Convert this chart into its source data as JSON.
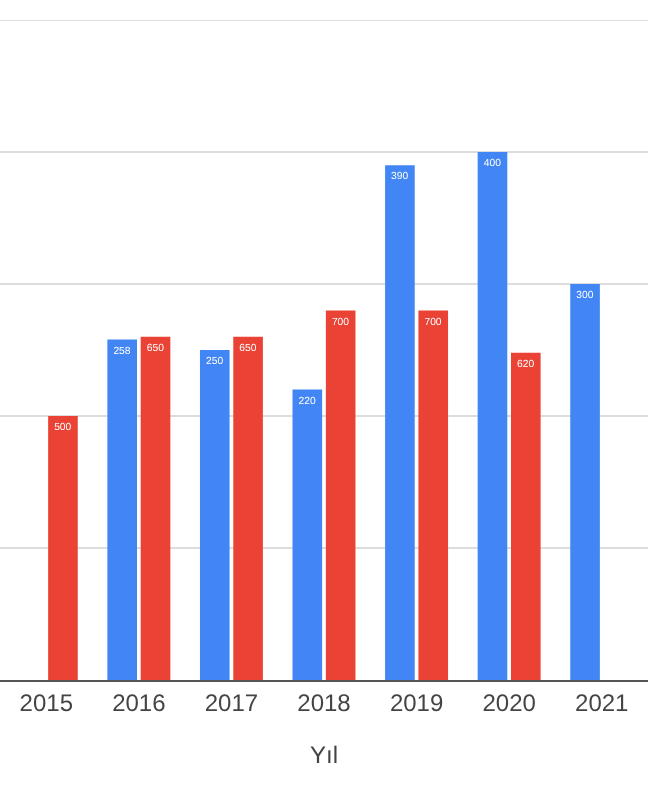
{
  "chart_data": {
    "type": "bar",
    "xlabel": "Yıl",
    "categories": [
      "2015",
      "2016",
      "2017",
      "2018",
      "2019",
      "2020",
      "2021"
    ],
    "series": [
      {
        "color": "#4285f4",
        "values": [
          null,
          258,
          250,
          220,
          390,
          400,
          300
        ]
      },
      {
        "color": "#ea4335",
        "axis": "y2",
        "values": [
          500,
          650,
          650,
          700,
          700,
          620,
          null
        ]
      }
    ],
    "ylim": [
      0,
      500
    ],
    "y2lim": [
      0,
      1250
    ],
    "grid": "y",
    "data_labels": true,
    "tick_labels": "x"
  }
}
